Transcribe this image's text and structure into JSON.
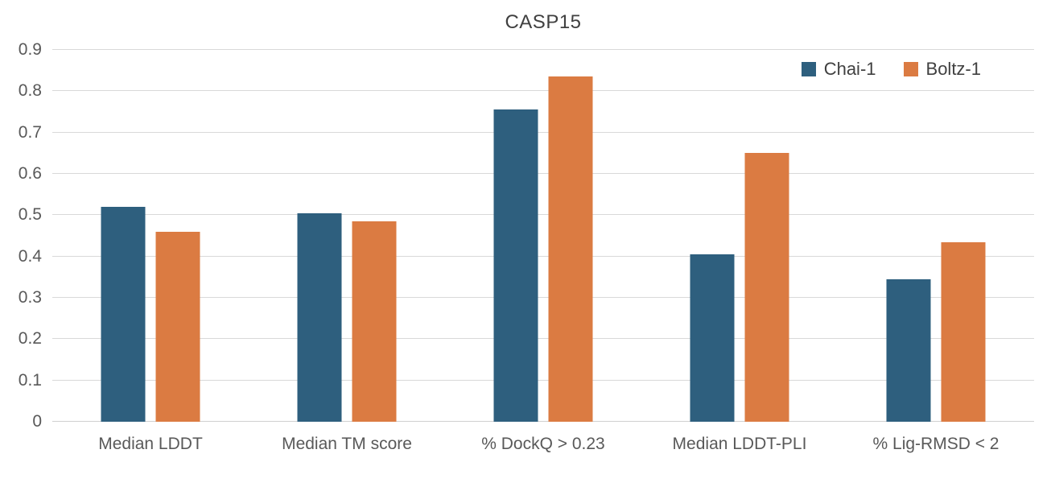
{
  "chart_data": {
    "type": "bar",
    "title": "CASP15",
    "categories": [
      "Median LDDT",
      "Median TM score",
      "% DockQ > 0.23",
      "Median LDDT-PLI",
      "% Lig-RMSD < 2"
    ],
    "series": [
      {
        "name": "Chai-1",
        "color": "#2E5F7E",
        "values": [
          0.52,
          0.505,
          0.755,
          0.405,
          0.345
        ]
      },
      {
        "name": "Boltz-1",
        "color": "#DB7B42",
        "values": [
          0.46,
          0.485,
          0.835,
          0.65,
          0.435
        ]
      }
    ],
    "xlabel": "",
    "ylabel": "",
    "ylim": [
      0,
      0.9
    ],
    "yticks": [
      "0.9",
      "0.8",
      "0.7",
      "0.6",
      "0.5",
      "0.4",
      "0.3",
      "0.2",
      "0.1",
      "0"
    ],
    "grid": "horizontal",
    "legend_position": "top-right"
  },
  "colors": {
    "background": "#FFFFFF",
    "gridline": "#D9D9D9",
    "axis_text": "#595959",
    "title_text": "#404040",
    "series_chai1": "#2E5F7E",
    "series_boltz1": "#DB7B42"
  }
}
